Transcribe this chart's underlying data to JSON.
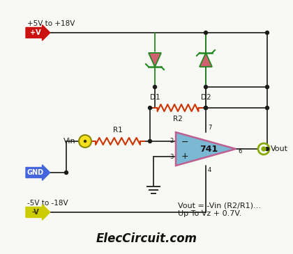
{
  "bg_color": "#f8f8f4",
  "title": "ElecCircuit.com",
  "title_fontsize": 12,
  "formula_text": "Vout = -Vin (R2/R1)...\nUp To Vz + 0.7V.",
  "formula_fontsize": 8,
  "vplus_label": "+V",
  "vplus_sub": "+5V to +18V",
  "vminus_label": "-V",
  "vminus_sub": "-5V to -18V",
  "gnd_label": "GND",
  "vin_label": "Vin",
  "vout_label": "Vout",
  "r1_label": "R1",
  "r2_label": "R2",
  "d1_label": "D1",
  "d2_label": "D2",
  "opamp_label": "741",
  "wire_color": "#2a2a2a",
  "opamp_fill": "#7bb8d4",
  "opamp_stroke": "#c06090",
  "diode_green": "#228822",
  "diode_pink": "#d06070",
  "resistor_color": "#cc3300",
  "vplus_box_color": "#cc1111",
  "vminus_box_color": "#cccc00",
  "gnd_box_color": "#4466dd",
  "node_dot_color": "#1a1a1a",
  "vout_ring_color": "#bbbb00"
}
